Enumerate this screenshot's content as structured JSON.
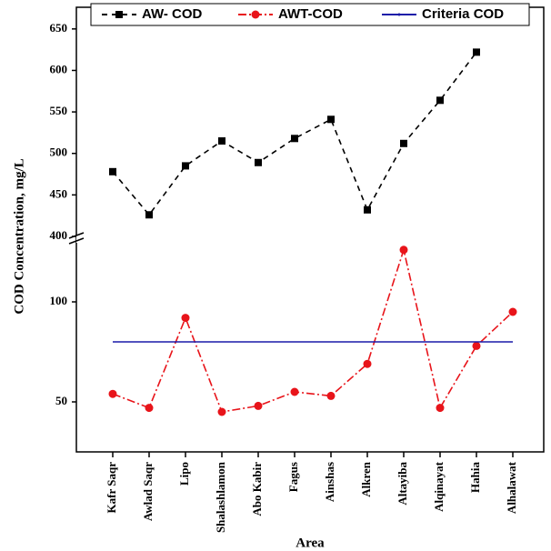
{
  "chart_data": {
    "type": "line",
    "x_label": "Area",
    "y_label": "COD Concentration, mg/L",
    "categories": [
      "Kafr Saqr",
      "Awlad Saqr",
      "Lipo",
      "Shalashlamon",
      "Abo Kabir",
      "Fagus",
      "Ainshas",
      "Alkren",
      "Altayiba",
      "Alqinayat",
      "Hahia",
      "Alhalawat"
    ],
    "ylim": [
      25,
      130
    ],
    "yticks": [
      50,
      100
    ],
    "upper_ylim": [
      400,
      675
    ],
    "upper_yticks": [
      400,
      450,
      500,
      550,
      600,
      650
    ],
    "series": [
      {
        "name": "AW- COD",
        "color": "#000000",
        "axis": "upper",
        "values": [
          478,
          426,
          485,
          515,
          489,
          518,
          541,
          432,
          512,
          564,
          622,
          null
        ]
      },
      {
        "name": "AWT-COD",
        "color": "#e8141a",
        "values": [
          54,
          47,
          92,
          45,
          48,
          55,
          53,
          69,
          126,
          47,
          78,
          95
        ]
      },
      {
        "name": "Criteria COD",
        "color": "#1a1aa8",
        "values": [
          80,
          80,
          80,
          80,
          80,
          80,
          80,
          80,
          80,
          80,
          80,
          80
        ]
      }
    ]
  }
}
